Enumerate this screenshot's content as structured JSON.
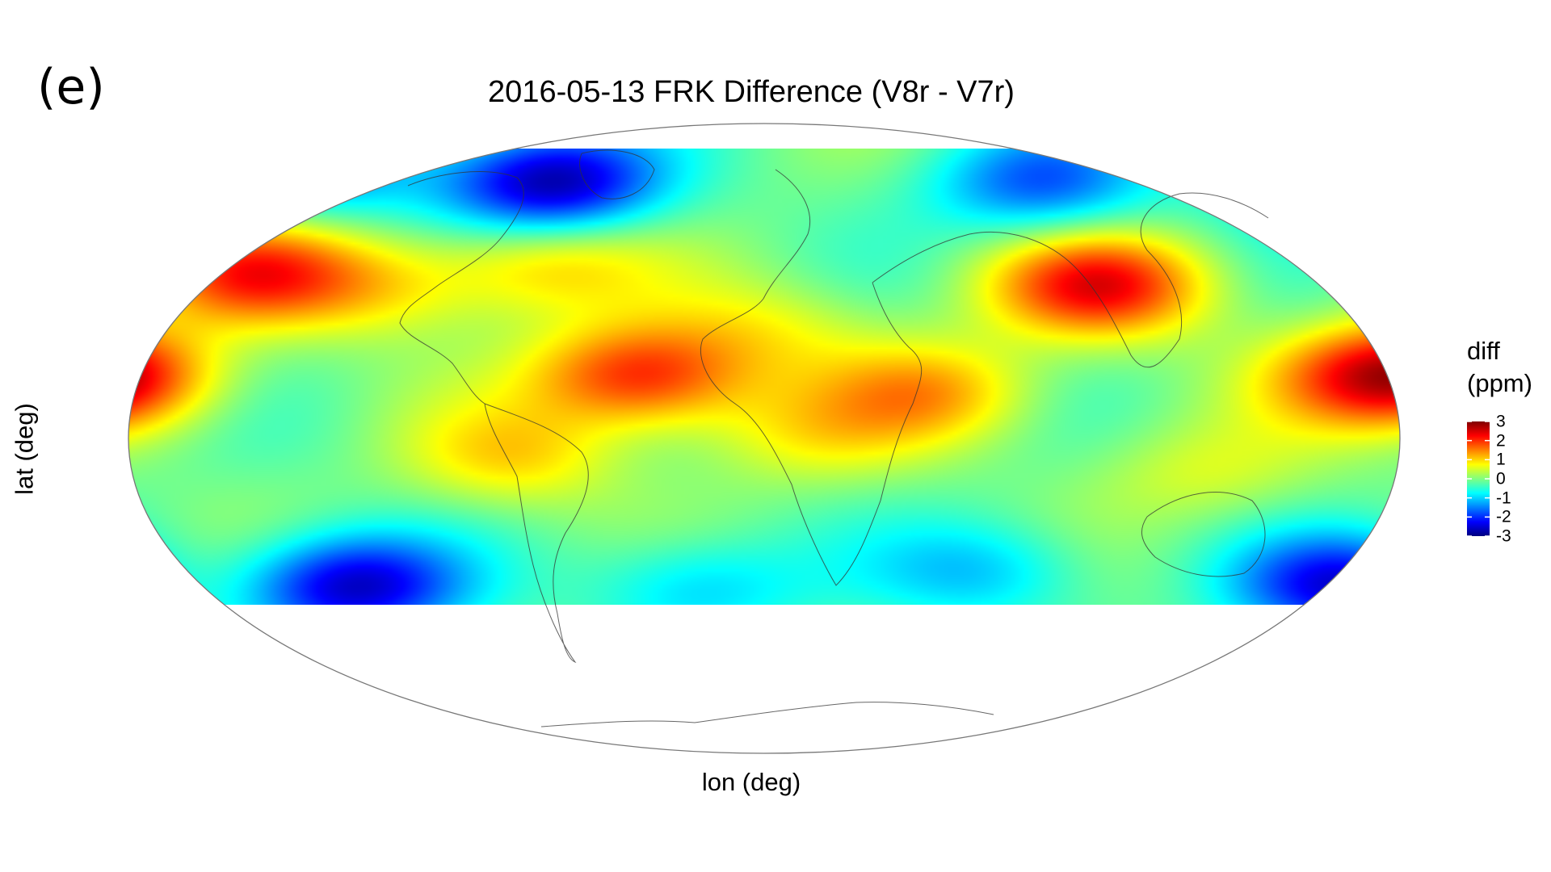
{
  "panel_label": "(e)",
  "title": "2016-05-13 FRK Difference (V8r - V7r)",
  "xlabel": "lon (deg)",
  "ylabel": "lat (deg)",
  "legend": {
    "title_line1": "diff",
    "title_line2": "(ppm)",
    "ticks": [
      3,
      2,
      1,
      0,
      -1,
      -2,
      -3
    ],
    "range": [
      -3,
      3
    ],
    "colormap": "jet",
    "colors": [
      "#00007f",
      "#0000ff",
      "#0080ff",
      "#00ffff",
      "#80ff80",
      "#ffff00",
      "#ff8000",
      "#ff0000",
      "#7f0000"
    ]
  },
  "map": {
    "projection": "mollweide",
    "lon_range": [
      -180,
      180
    ],
    "data_lat_range": [
      -60,
      80
    ],
    "outline_color": "#555555",
    "background_diff": -0.1,
    "field_anomalies": [
      {
        "lon": -143,
        "lat": 42,
        "diff": 1.9
      },
      {
        "lon": -180,
        "lat": 10,
        "diff": 1.3
      },
      {
        "lon": 170,
        "lat": 10,
        "diff": 1.8
      },
      {
        "lon": -105,
        "lat": 38,
        "diff": 0.9
      },
      {
        "lon": -62,
        "lat": 45,
        "diff": 1.1
      },
      {
        "lon": -35,
        "lat": 10,
        "diff": 2.2
      },
      {
        "lon": 0,
        "lat": 25,
        "diff": 0.7
      },
      {
        "lon": 45,
        "lat": 5,
        "diff": 1.3
      },
      {
        "lon": 92,
        "lat": 38,
        "diff": 2.3
      },
      {
        "lon": -70,
        "lat": -15,
        "diff": 1.0
      },
      {
        "lon": 10,
        "lat": -8,
        "diff": 0.7
      },
      {
        "lon": 120,
        "lat": -20,
        "diff": 0.6
      },
      {
        "lon": -60,
        "lat": 70,
        "diff": -2.7
      },
      {
        "lon": -125,
        "lat": 75,
        "diff": -1.4
      },
      {
        "lon": 75,
        "lat": 70,
        "diff": -1.6
      },
      {
        "lon": 155,
        "lat": 72,
        "diff": -1.5
      },
      {
        "lon": -115,
        "lat": -55,
        "diff": -2.5
      },
      {
        "lon": 160,
        "lat": -55,
        "diff": -2.3
      },
      {
        "lon": -20,
        "lat": -55,
        "diff": -1.0
      },
      {
        "lon": 60,
        "lat": -50,
        "diff": -1.0
      }
    ]
  }
}
